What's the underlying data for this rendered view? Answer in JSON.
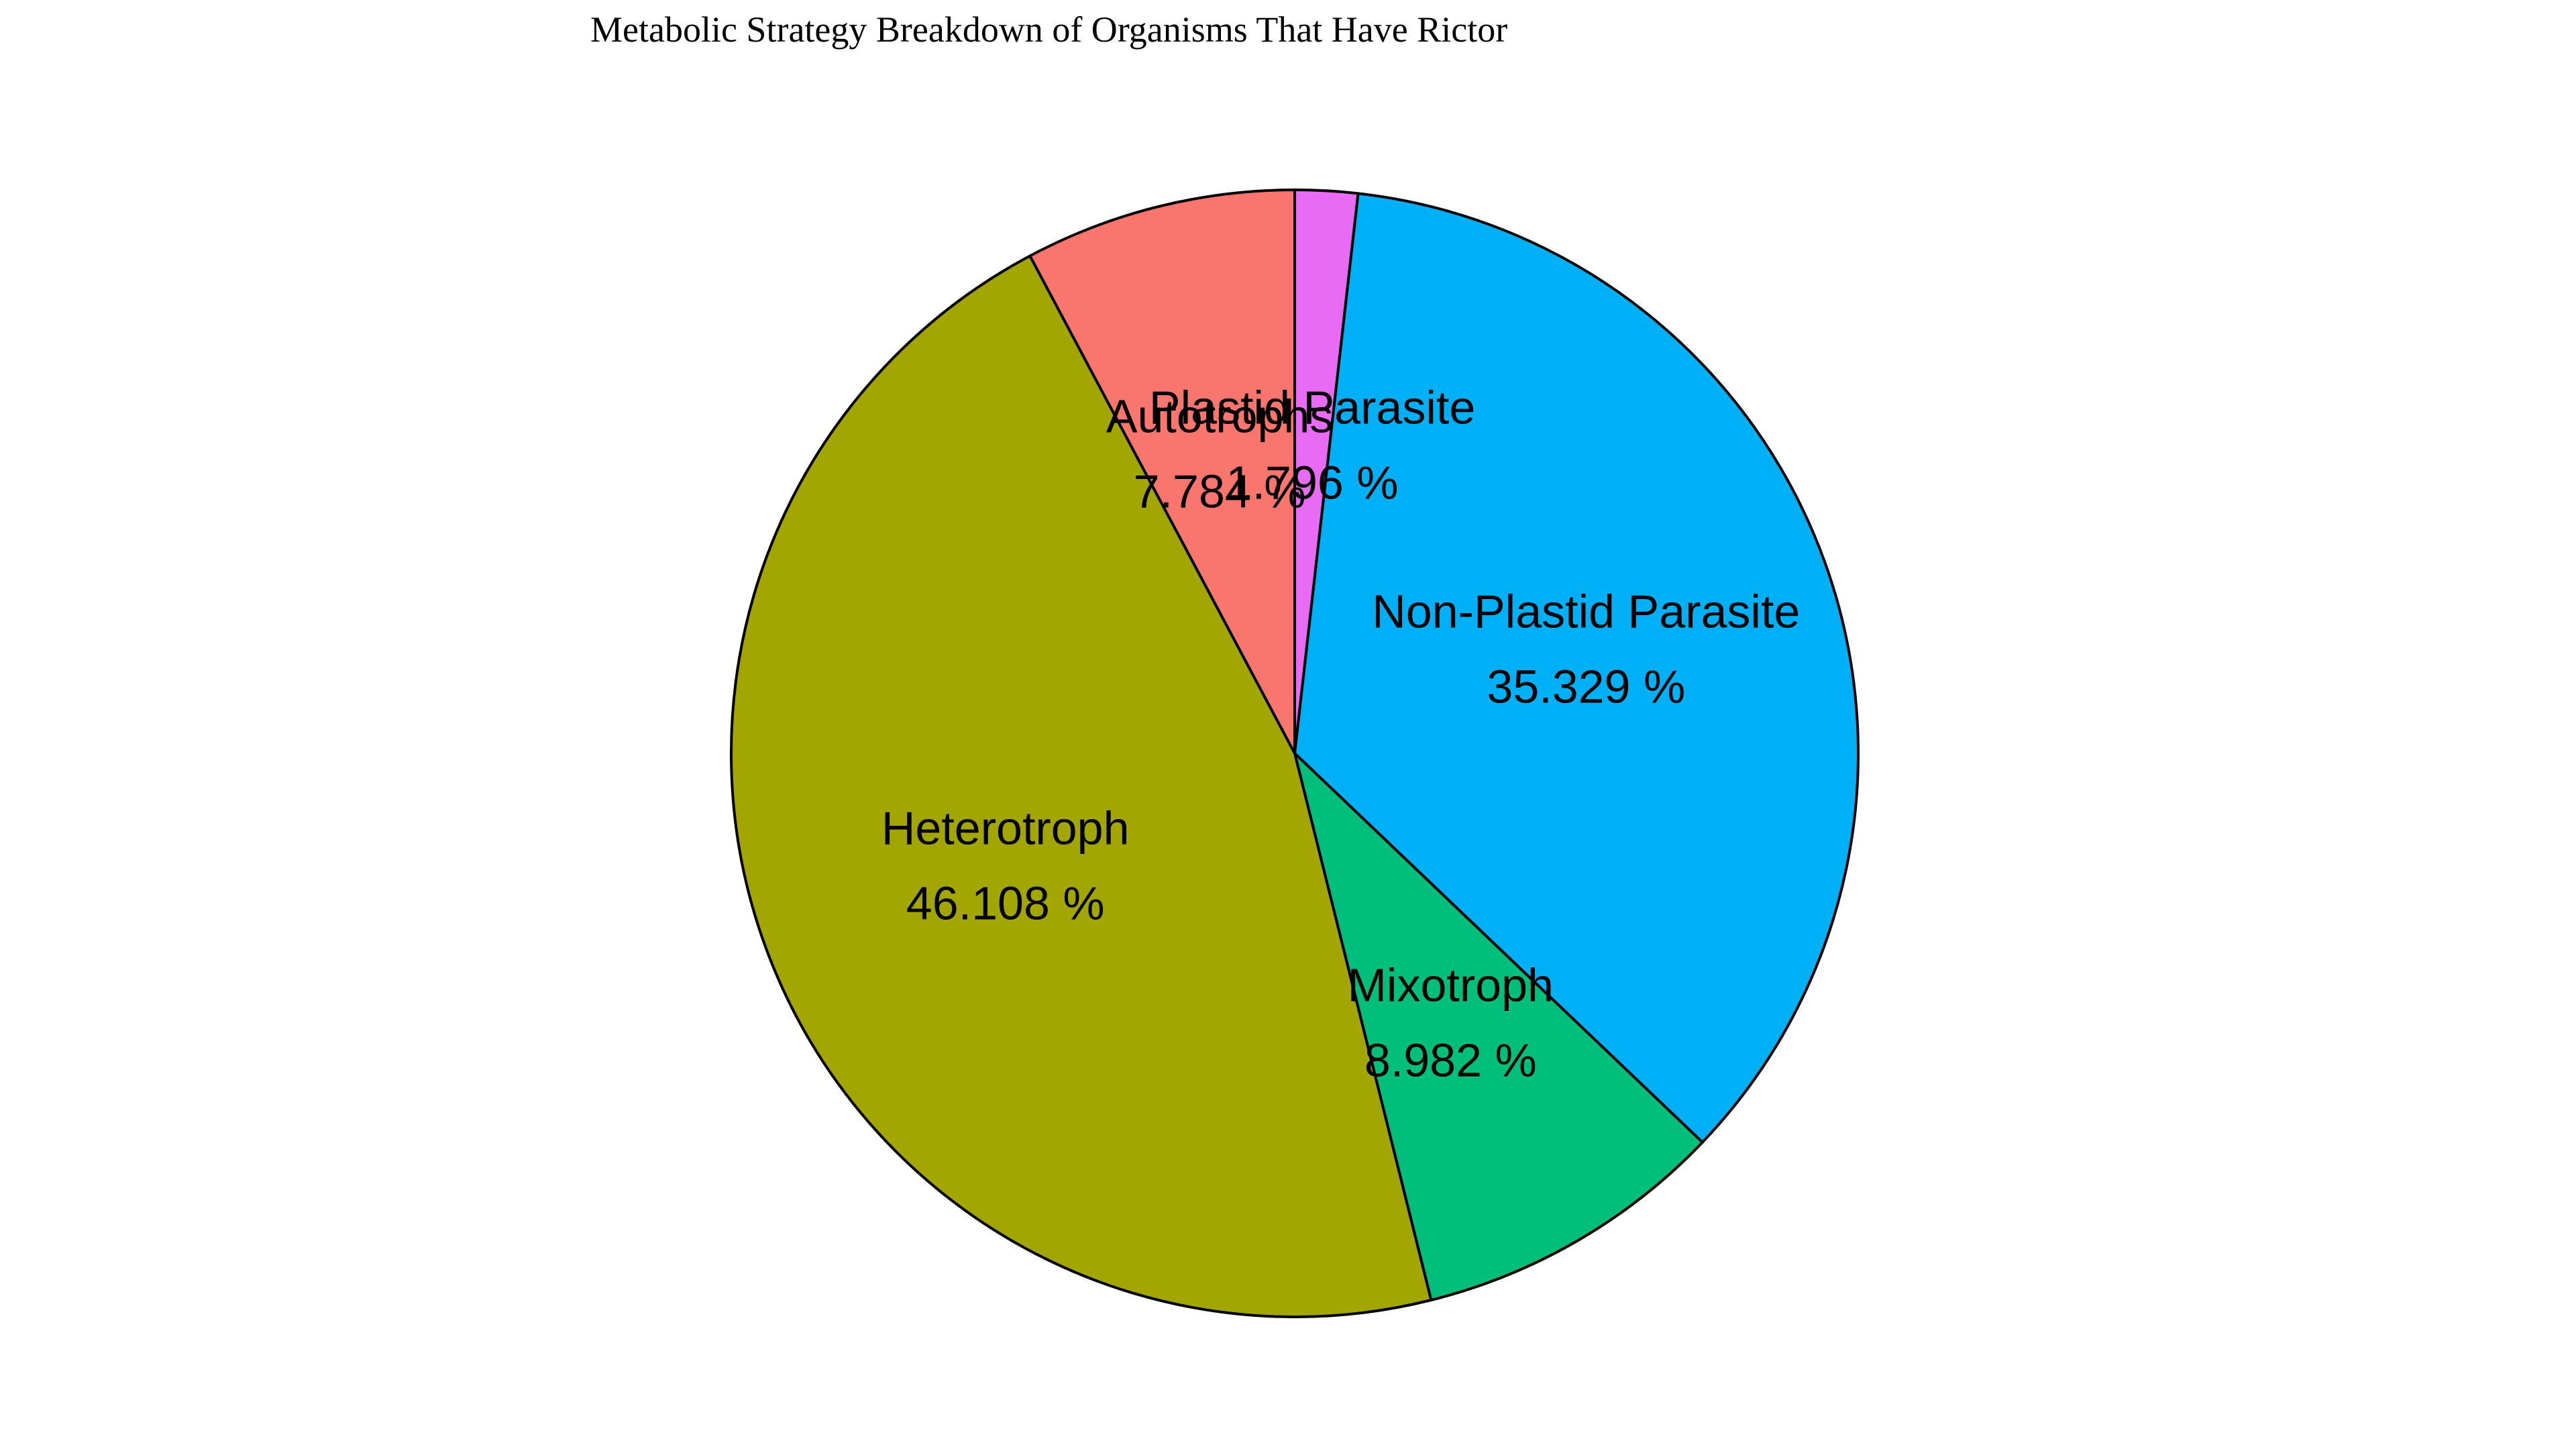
{
  "chart_data": {
    "type": "pie",
    "title": "Metabolic Strategy Breakdown of Organisms That Have Rictor",
    "slices": [
      {
        "label": "Plastid Parasite",
        "value": 1.796,
        "value_text": "1.796 %",
        "color": "#E76BF3"
      },
      {
        "label": "Non-Plastid Parasite",
        "value": 35.329,
        "value_text": "35.329 %",
        "color": "#00B0F6"
      },
      {
        "label": "Mixotroph",
        "value": 8.982,
        "value_text": "8.982 %",
        "color": "#00BF7D"
      },
      {
        "label": "Heterotroph",
        "value": 46.108,
        "value_text": "46.108 %",
        "color": "#A3A500"
      },
      {
        "label": "Autotrophs",
        "value": 7.784,
        "value_text": "7.784 %",
        "color": "#F8766D"
      }
    ],
    "start": "12 o'clock",
    "direction": "clockwise",
    "edge_color": "#000000",
    "legend": "none"
  }
}
